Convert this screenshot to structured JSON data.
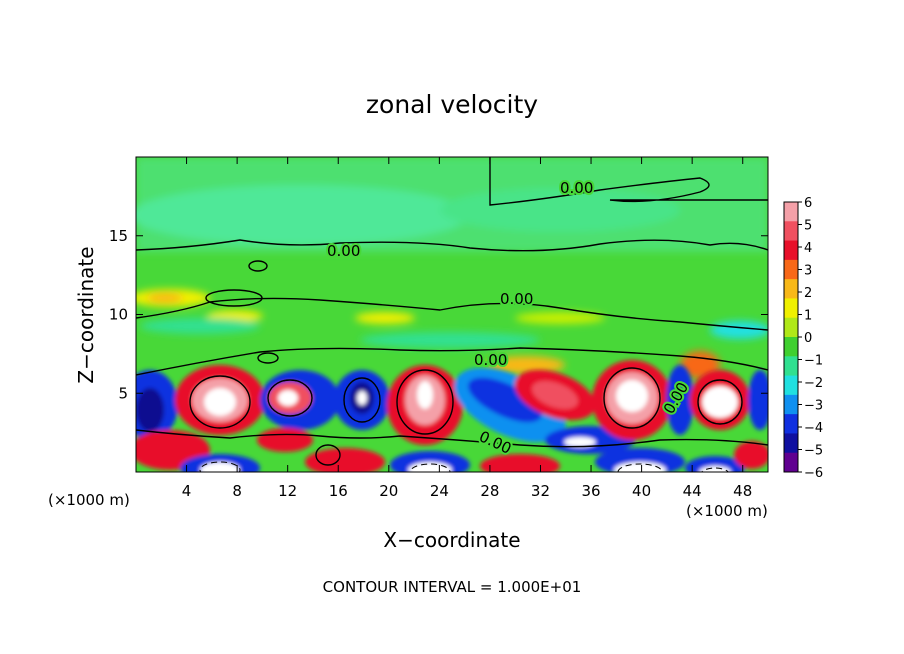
{
  "chart_data": {
    "type": "heatmap",
    "title": "zonal velocity",
    "xlabel": "X−coordinate",
    "ylabel": "Z−coordinate",
    "x_unit_left": "(×1000 m)",
    "x_unit_right": "(×1000 m)",
    "xlim": [
      0,
      50
    ],
    "ylim": [
      0,
      20
    ],
    "x_ticks": [
      "4",
      "8",
      "12",
      "16",
      "20",
      "24",
      "28",
      "32",
      "36",
      "40",
      "44",
      "48"
    ],
    "x_tick_values": [
      4,
      8,
      12,
      16,
      20,
      24,
      28,
      32,
      36,
      40,
      44,
      48
    ],
    "y_ticks": [
      "5",
      "10",
      "15"
    ],
    "y_tick_values": [
      5,
      10,
      15
    ],
    "colorbar": {
      "labels": [
        "6",
        "5",
        "4",
        "3",
        "2",
        "1",
        "0",
        "−1",
        "−2",
        "−3",
        "−4",
        "−5",
        "−6"
      ],
      "values": [
        6,
        5,
        4,
        3,
        2,
        1,
        0,
        -1,
        -2,
        -3,
        -4,
        -5,
        -6
      ],
      "colors": [
        "#f4a0a8",
        "#f05060",
        "#e8102a",
        "#f86818",
        "#f8b818",
        "#f0f000",
        "#b0e818",
        "#40d030",
        "#30e090",
        "#20e0e0",
        "#1090f0",
        "#1030e0",
        "#1010a0",
        "#600090"
      ]
    },
    "contour_labels": [
      "0.00",
      "0.00",
      "0.00",
      "0.00",
      "0.00",
      "0.00"
    ],
    "note": "CONTOUR INTERVAL = 1.000E+01"
  }
}
